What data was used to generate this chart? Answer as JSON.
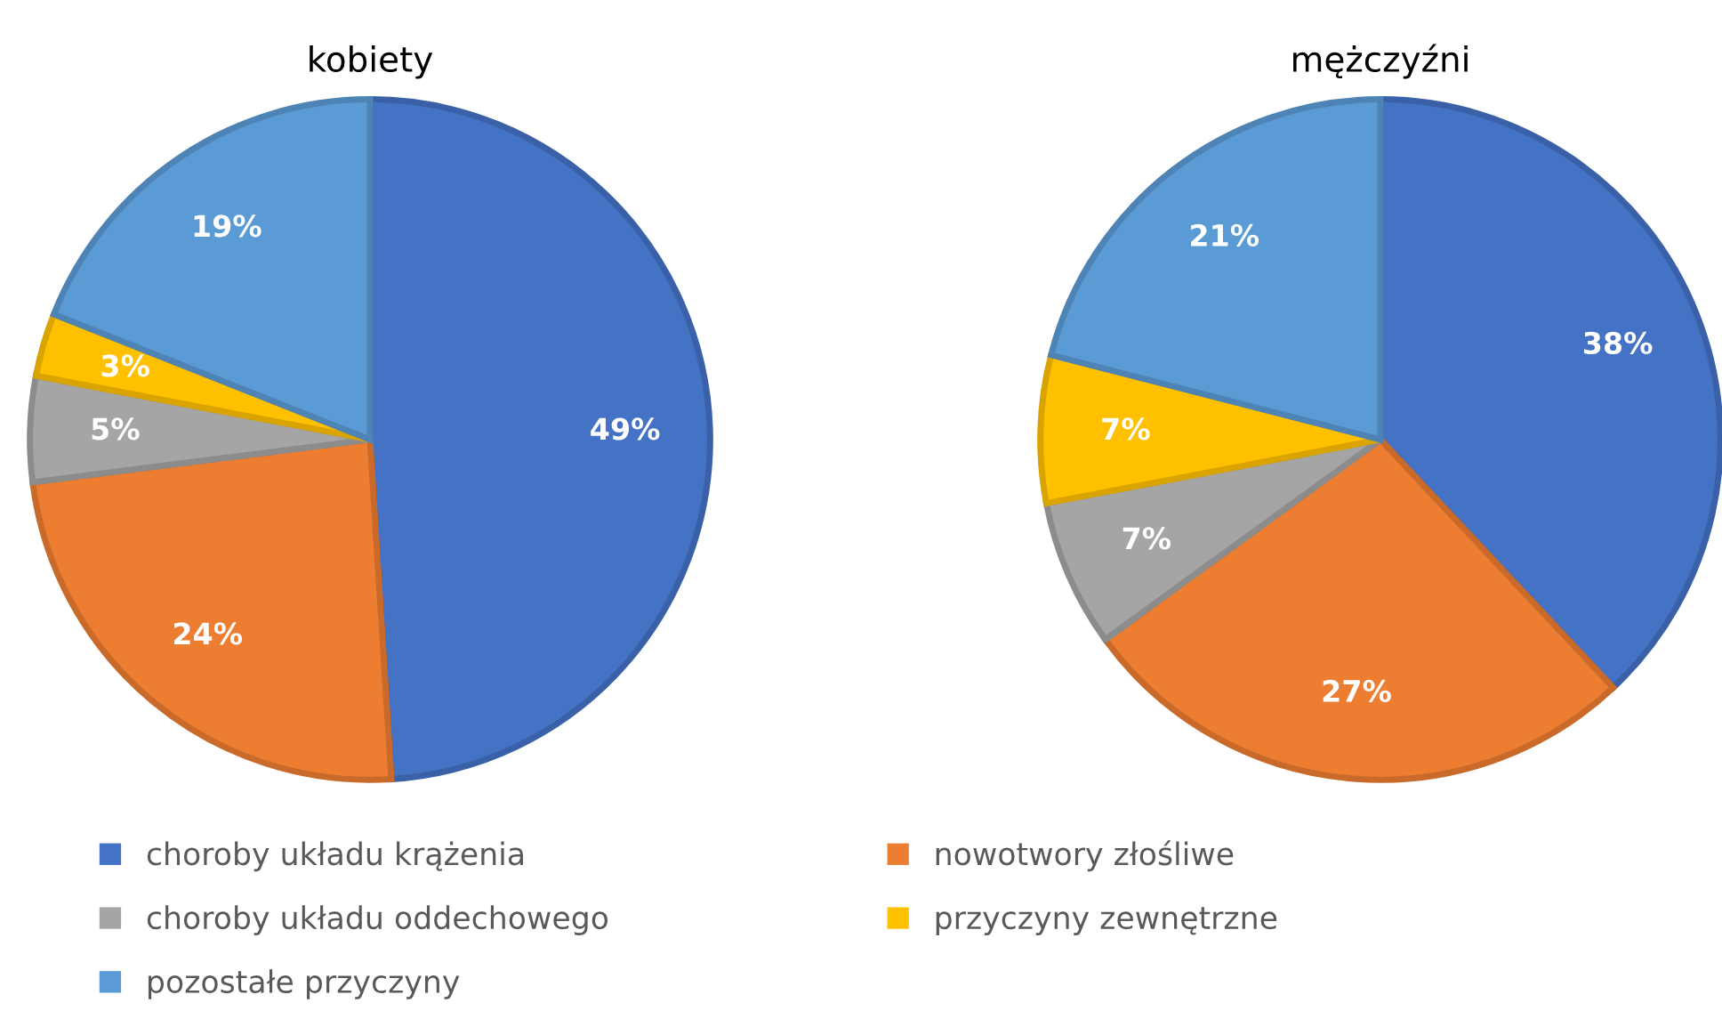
{
  "chart_data": [
    {
      "type": "pie",
      "title": "kobiety",
      "categories": [
        "choroby układu krążenia",
        "nowotwory złośliwe",
        "choroby układu oddechowego",
        "przyczyny zewnętrzne",
        "pozostałe przyczyny"
      ],
      "values": [
        49,
        24,
        5,
        3,
        19
      ],
      "colors": [
        "#4472c4",
        "#ed7d31",
        "#a5a5a5",
        "#ffc000",
        "#5b9bd5"
      ],
      "value_labels": [
        "49%",
        "24%",
        "5%",
        "3%",
        "19%"
      ],
      "legend": "bottom"
    },
    {
      "type": "pie",
      "title": "mężczyźni",
      "categories": [
        null,
        null,
        null,
        null,
        null
      ],
      "values": [
        38,
        27,
        7,
        7,
        21
      ],
      "colors": [
        "#4472c4",
        "#ed7d31",
        "#a5a5a5",
        "#ffc000",
        "#5b9bd5"
      ],
      "value_labels": [
        "38%",
        "27%",
        "7%",
        "7%",
        "21%"
      ]
    }
  ]
}
